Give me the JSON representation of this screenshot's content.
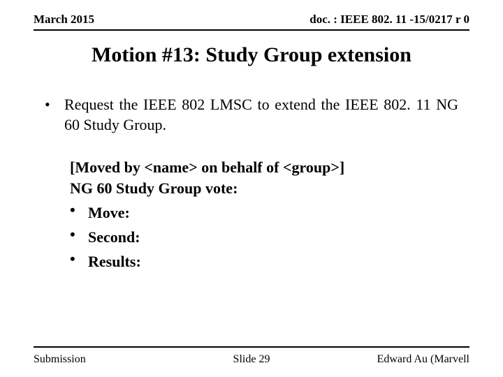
{
  "header": {
    "left": "March 2015",
    "right": "doc. : IEEE 802. 11 -15/0217 r 0"
  },
  "title": "Motion #13: Study Group extension",
  "main_bullet": "Request the IEEE 802 LMSC to extend the IEEE 802. 11 NG 60 Study Group.",
  "moved_line": "[Moved by <name> on behalf of <group>]",
  "vote_line": "NG 60 Study Group vote:",
  "sub_bullets": {
    "b1": "Move:",
    "b2": "Second:",
    "b3": "Results:"
  },
  "footer": {
    "left": "Submission",
    "center": "Slide 29",
    "right": "Edward Au (Marvell"
  },
  "colors": {
    "background": "#ffffff",
    "text": "#000000",
    "rule": "#000000"
  }
}
